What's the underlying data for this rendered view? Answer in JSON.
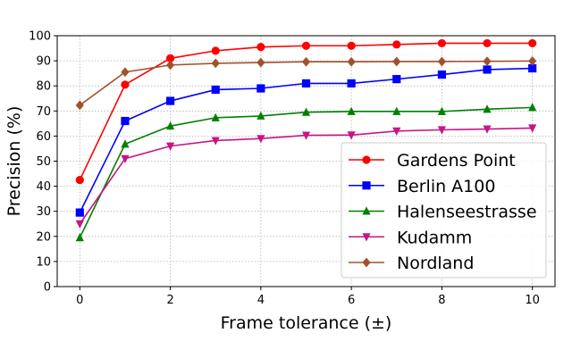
{
  "chart_data": {
    "type": "line",
    "xlabel": "Frame tolerance (±)",
    "ylabel": "Precision (%)",
    "xlim": [
      -0.5,
      10.5
    ],
    "ylim": [
      0,
      100
    ],
    "xticks": [
      "0",
      "2",
      "4",
      "6",
      "8",
      "10"
    ],
    "yticks": [
      "0",
      "10",
      "20",
      "30",
      "40",
      "50",
      "60",
      "70",
      "80",
      "90",
      "100"
    ],
    "grid": true,
    "legend_position": "lower-right",
    "x": [
      0,
      1,
      2,
      3,
      4,
      5,
      6,
      7,
      8,
      9,
      10
    ],
    "series": [
      {
        "name": "Gardens Point",
        "color": "#ff0000",
        "marker": "circle",
        "values": [
          42.5,
          80.5,
          91,
          94,
          95.5,
          96,
          96,
          96.5,
          97,
          97,
          97
        ]
      },
      {
        "name": "Berlin A100",
        "color": "#0000ff",
        "marker": "square",
        "values": [
          29.5,
          66,
          74,
          78.5,
          79,
          81,
          81,
          82.7,
          84.5,
          86.5,
          87
        ]
      },
      {
        "name": "Halenseestrasse",
        "color": "#008000",
        "marker": "triangle-up",
        "values": [
          19.5,
          56.8,
          64,
          67.3,
          68,
          69.5,
          69.8,
          69.8,
          69.8,
          70.7,
          71.4
        ]
      },
      {
        "name": "Kudamm",
        "color": "#c71585",
        "marker": "triangle-down",
        "values": [
          25,
          51,
          56,
          58.2,
          59,
          60.3,
          60.4,
          62,
          62.5,
          62.8,
          63.2
        ]
      },
      {
        "name": "Nordland",
        "color": "#a0522d",
        "marker": "diamond",
        "values": [
          72.3,
          85.5,
          88.3,
          89,
          89.3,
          89.6,
          89.6,
          89.7,
          89.7,
          89.8,
          89.9
        ]
      }
    ]
  }
}
